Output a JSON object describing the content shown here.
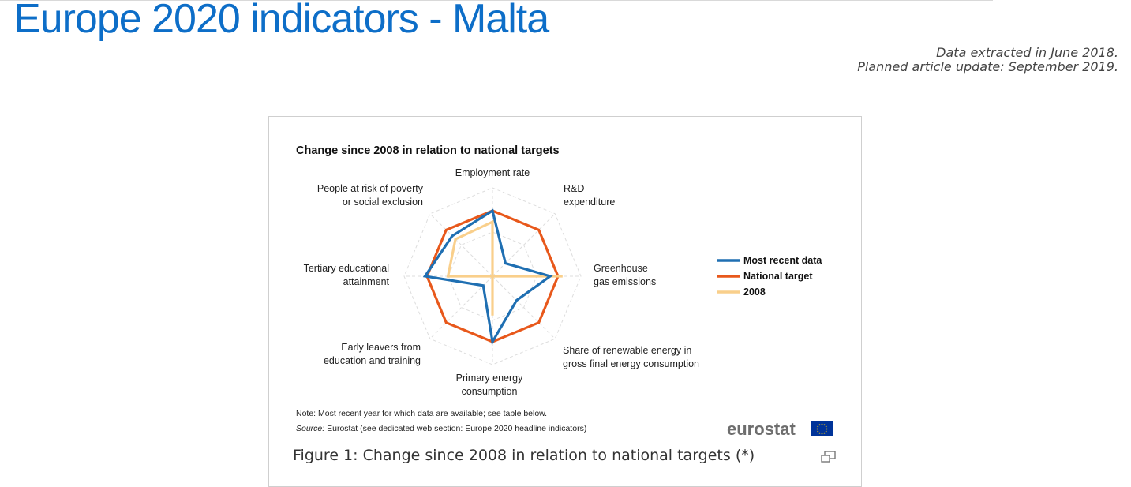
{
  "page": {
    "title": "Europe 2020 indicators - Malta",
    "data_extracted": "Data extracted in June 2018.",
    "planned_update": "Planned article update: September 2019."
  },
  "figure": {
    "caption": "Figure 1: Change since 2008 in relation to national targets (*)",
    "note": "Note: Most recent year for which data are available; see table below.",
    "source_label": "Source:",
    "source_text": " Eurostat (see dedicated web section: Europe 2020 headline indicators)",
    "logo_text": "eurostat",
    "expand_icon": "expand-icon"
  },
  "chart_data": {
    "type": "radar",
    "title": "Change since 2008 in relation to national targets",
    "axes": [
      {
        "label": [
          "Employment rate"
        ]
      },
      {
        "label": [
          "R&D",
          "expenditure"
        ]
      },
      {
        "label": [
          "Greenhouse",
          "gas emissions"
        ]
      },
      {
        "label": [
          "Share of renewable energy in",
          "gross final energy consumption"
        ]
      },
      {
        "label": [
          "Primary energy",
          "consumption"
        ]
      },
      {
        "label": [
          "Early leavers from",
          "education and training"
        ]
      },
      {
        "label": [
          "Tertiary educational",
          "attainment"
        ]
      },
      {
        "label": [
          "People at risk of poverty",
          "or social exclusion"
        ]
      }
    ],
    "series": [
      {
        "name": "Most recent data",
        "color": "#1f6fb2",
        "values": [
          1.0,
          0.28,
          0.88,
          0.52,
          1.0,
          0.2,
          1.03,
          0.87
        ]
      },
      {
        "name": "National target",
        "color": "#e8581b",
        "values": [
          1,
          1,
          1,
          1,
          1,
          1,
          1,
          1
        ]
      },
      {
        "name": "2008",
        "color": "#f9cf8b",
        "values": [
          0.83,
          0.0,
          1.07,
          0.0,
          0.6,
          0.0,
          0.68,
          0.8
        ]
      }
    ],
    "grid": true,
    "legend_position": "right"
  }
}
